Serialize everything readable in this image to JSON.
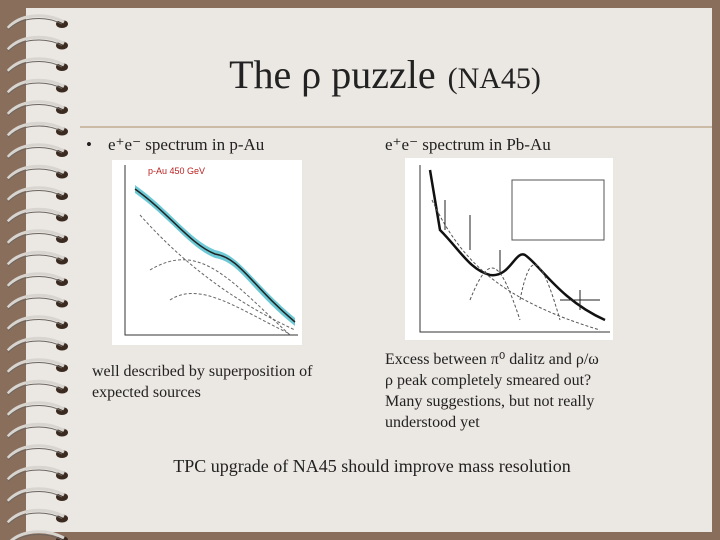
{
  "title": {
    "main": "The ρ puzzle",
    "suffix": "(NA45)"
  },
  "left": {
    "heading": "e⁺e⁻ spectrum in p-Au",
    "plot_label": "p-Au 450 GeV",
    "caption": [
      "well described by superposition of",
      "expected sources"
    ]
  },
  "right": {
    "heading": "e⁺e⁻ spectrum in Pb-Au",
    "caption": [
      "Excess between π⁰ dalitz and ρ/ω",
      "ρ peak completely smeared out?",
      "Many suggestions, but not  really",
      "understood yet"
    ]
  },
  "footer": "TPC upgrade of NA45 should improve mass resolution"
}
